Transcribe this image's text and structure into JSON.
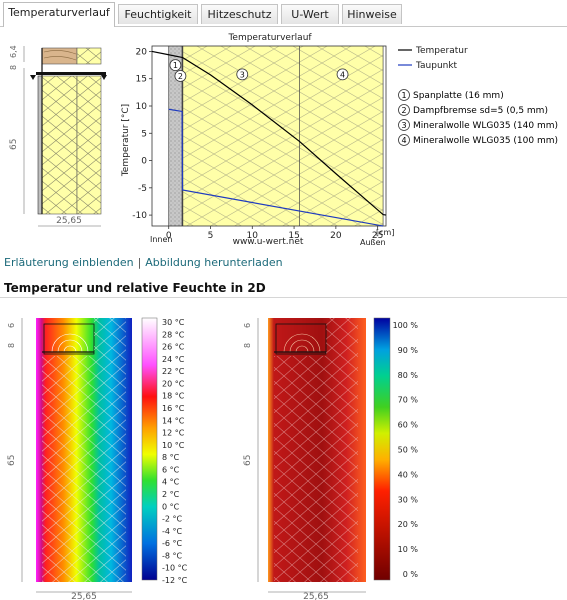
{
  "tabs": [
    {
      "label": "Temperaturverlauf",
      "active": true
    },
    {
      "label": "Feuchtigkeit",
      "active": false
    },
    {
      "label": "Hitzeschutz",
      "active": false
    },
    {
      "label": "U-Wert",
      "active": false
    },
    {
      "label": "Hinweise",
      "active": false
    }
  ],
  "section_drawing": {
    "dim_top": "6,4",
    "dim_top2": "8",
    "dim_height": "65",
    "dim_width": "25,65"
  },
  "chart_data": {
    "type": "line",
    "title": "Temperaturverlauf",
    "ylabel": "Temperatur [°C]",
    "xlabel": "[cm]",
    "xlim": [
      -2,
      26
    ],
    "ylim": [
      -12,
      21
    ],
    "x_ticks": [
      "0",
      "5",
      "10",
      "15",
      "20",
      "25"
    ],
    "y_ticks": [
      "20",
      "15",
      "10",
      "5",
      "0",
      "-5",
      "-10"
    ],
    "inside_label": "Innen",
    "outside_label": "Außen",
    "watermark": "www.u-wert.net",
    "series": [
      {
        "name": "Temperatur",
        "color": "#000000",
        "x": [
          -2,
          0,
          1.6,
          1.65,
          5,
          10,
          15.65,
          20,
          25.65,
          26
        ],
        "y": [
          20,
          19.4,
          18.9,
          18.9,
          15.7,
          10.2,
          3.5,
          -2.4,
          -9.9,
          -10
        ]
      },
      {
        "name": "Taupunkt",
        "color": "#1f3bbf",
        "x": [
          0,
          1.6,
          1.65,
          25.65
        ],
        "y": [
          9.4,
          9.0,
          -5.4,
          -12
        ]
      }
    ],
    "layers": [
      {
        "num": "1",
        "label": "Spanplatte (16 mm)"
      },
      {
        "num": "2",
        "label": "Dampfbremse sd=5 (0,5 mm)"
      },
      {
        "num": "3",
        "label": "Mineralwolle WLG035 (140 mm)"
      },
      {
        "num": "4",
        "label": "Mineralwolle WLG035 (100 mm)"
      }
    ]
  },
  "links": {
    "show_explanation": "Erläuterung einblenden",
    "separator": "|",
    "download_image": "Abbildung herunterladen"
  },
  "section2": {
    "title": "Temperatur und relative Feuchte in 2D",
    "dim_top": "6",
    "dim_top2": "8",
    "dim_height": "65",
    "dim_width": "25,65",
    "temp_scale": [
      "30 °C",
      "28 °C",
      "26 °C",
      "24 °C",
      "22 °C",
      "20 °C",
      "18 °C",
      "16 °C",
      "14 °C",
      "12 °C",
      "10 °C",
      "8 °C",
      "6 °C",
      "4 °C",
      "2 °C",
      "0 °C",
      "-2 °C",
      "-4 °C",
      "-6 °C",
      "-8 °C",
      "-10 °C",
      "-12 °C"
    ],
    "humidity_scale": [
      "100 %",
      "90 %",
      "80 %",
      "70 %",
      "60 %",
      "50 %",
      "40 %",
      "30 %",
      "20 %",
      "10 %",
      "0 %"
    ]
  }
}
